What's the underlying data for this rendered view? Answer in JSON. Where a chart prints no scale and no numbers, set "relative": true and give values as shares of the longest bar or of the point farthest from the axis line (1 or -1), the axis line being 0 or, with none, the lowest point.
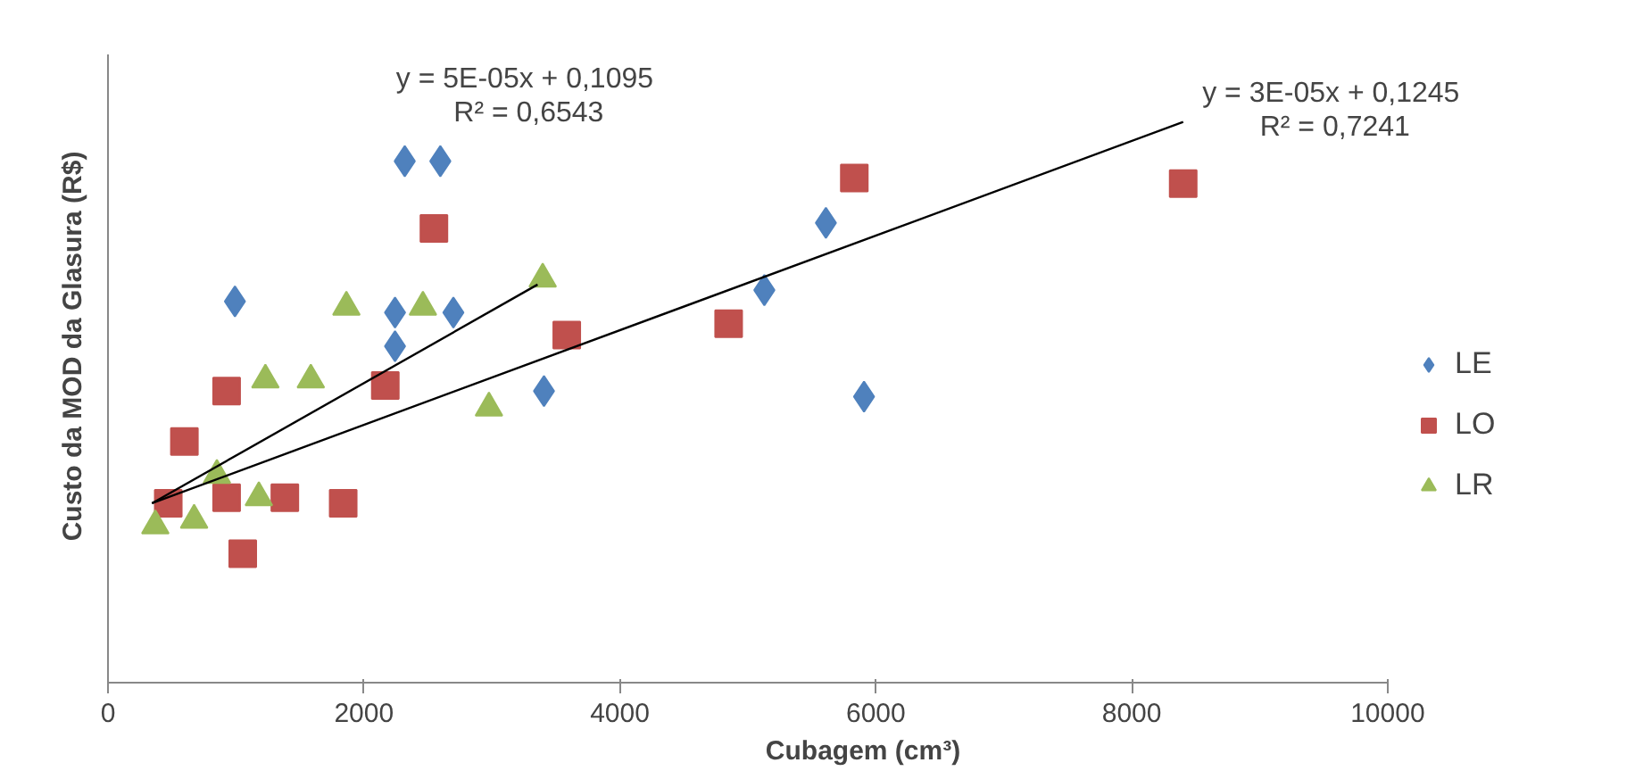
{
  "chart_data": {
    "type": "scatter",
    "relative": true,
    "xlabel": "Cubagem (cm³)",
    "ylabel": "Custo da MOD da Glasura (R$)",
    "xlim": [
      0,
      10000
    ],
    "xticks": [
      0,
      2000,
      4000,
      6000,
      8000,
      10000
    ],
    "grid": false,
    "legend": "right",
    "series": [
      {
        "name": "LE",
        "color": "#4f81bd",
        "marker": "diamond",
        "x": [
          992,
          2319,
          2597,
          2243,
          2699,
          2243,
          3407,
          5129,
          5610,
          5908
        ],
        "values": [
          0.68,
          0.93,
          0.93,
          0.66,
          0.66,
          0.6,
          0.52,
          0.7,
          0.82,
          0.51
        ]
      },
      {
        "name": "LO",
        "color": "#c0504d",
        "marker": "square",
        "x": [
          471,
          597,
          927,
          927,
          1053,
          1382,
          1838,
          2167,
          2547,
          3585,
          4850,
          5832,
          8402
        ],
        "values": [
          0.32,
          0.43,
          0.52,
          0.33,
          0.23,
          0.33,
          0.32,
          0.53,
          0.81,
          0.62,
          0.64,
          0.9,
          0.89
        ]
      },
      {
        "name": "LR",
        "color": "#9bbb59",
        "marker": "triangle",
        "x": [
          370,
          673,
          851,
          1179,
          1230,
          1585,
          1863,
          2461,
          2977,
          3397
        ],
        "values": [
          0.28,
          0.29,
          0.37,
          0.33,
          0.54,
          0.54,
          0.67,
          0.67,
          0.49,
          0.72
        ]
      },
      {
        "type": "line",
        "color": "#000000",
        "x": [
          344,
          3357
        ],
        "values": [
          0.32,
          0.71
        ]
      },
      {
        "type": "line",
        "color": "#000000",
        "x": [
          344,
          8402
        ],
        "values": [
          0.32,
          1.0
        ]
      }
    ],
    "annotations": [
      "y = 5E-05x  + 0,1095",
      "R² = 0,6543",
      "y = 3E-05x  + 0,1245",
      "R² = 0,7241"
    ]
  }
}
